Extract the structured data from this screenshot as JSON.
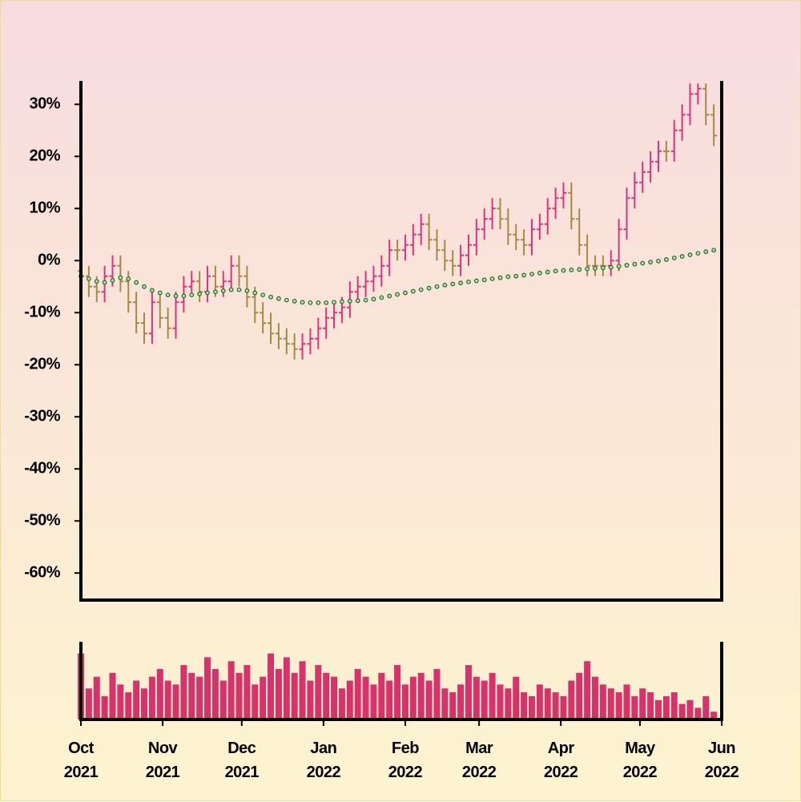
{
  "chart_data": {
    "type": "ohlc",
    "x": [
      0,
      3,
      6,
      9,
      12,
      15,
      18,
      21,
      24,
      27,
      30,
      33,
      36,
      39,
      42,
      45,
      48,
      51,
      54,
      57,
      60,
      63,
      66,
      69,
      72,
      75,
      78,
      81,
      84,
      87,
      90,
      93,
      96,
      99,
      102,
      105,
      108,
      111,
      114,
      117,
      120,
      123,
      126,
      129,
      132,
      135,
      138,
      141,
      144,
      147,
      150,
      153,
      156,
      159,
      162,
      165,
      168,
      171,
      174,
      177,
      180,
      183,
      186,
      189,
      192,
      195,
      198,
      201,
      204,
      207,
      210,
      213,
      216,
      219,
      222,
      225,
      228,
      231,
      234,
      237,
      240
    ],
    "xlim": [
      0,
      243
    ],
    "xticks": [
      {
        "value": 0,
        "label": "Oct 2021"
      },
      {
        "value": 31,
        "label": "Nov 2021"
      },
      {
        "value": 61,
        "label": "Dec 2021"
      },
      {
        "value": 92,
        "label": "Jan 2022"
      },
      {
        "value": 123,
        "label": "Feb 2022"
      },
      {
        "value": 151,
        "label": "Mar 2022"
      },
      {
        "value": 182,
        "label": "Apr 2022"
      },
      {
        "value": 212,
        "label": "May 2022"
      },
      {
        "value": 243,
        "label": "Jun 2022"
      }
    ],
    "ylim": [
      -65.2,
      34.5
    ],
    "yticks": [
      {
        "value": 30,
        "label": "30%"
      },
      {
        "value": 20,
        "label": "20%"
      },
      {
        "value": 10,
        "label": "10%"
      },
      {
        "value": 0,
        "label": "0%"
      },
      {
        "value": -10,
        "label": "-10%"
      },
      {
        "value": -20,
        "label": "-20%"
      },
      {
        "value": -30,
        "label": "-30%"
      },
      {
        "value": -40,
        "label": "-40%"
      },
      {
        "value": -50,
        "label": "-50%"
      },
      {
        "value": -60,
        "label": "-60%"
      }
    ],
    "open": [
      -2,
      -3,
      -5,
      -6,
      -3,
      -1,
      -4,
      -8,
      -12,
      -14,
      -8,
      -11,
      -13,
      -8,
      -5,
      -4,
      -6,
      -3,
      -5,
      -4,
      -1,
      -3,
      -7,
      -10,
      -12,
      -14,
      -15,
      -16,
      -17,
      -16,
      -15,
      -13,
      -11,
      -10,
      -9,
      -6,
      -5,
      -4,
      -3,
      -1,
      2,
      2,
      3,
      5,
      7,
      4,
      2,
      0,
      -1,
      1,
      3,
      6,
      8,
      10,
      8,
      5,
      4,
      3,
      6,
      7,
      10,
      12,
      13,
      8,
      3,
      -1,
      -1,
      -1,
      0,
      6,
      12,
      15,
      17,
      19,
      21,
      21,
      25,
      28,
      32,
      33,
      28
    ],
    "high": [
      0,
      -1,
      -3,
      -1,
      1,
      1,
      -2,
      -6,
      -10,
      -6,
      -6,
      -9,
      -6,
      -3,
      -2,
      -2,
      -1,
      -1,
      -2,
      1,
      1,
      -1,
      -5,
      -8,
      -10,
      -12,
      -13,
      -14,
      -14,
      -13,
      -11,
      -9,
      -8,
      -7,
      -4,
      -3,
      -2,
      -1,
      1,
      4,
      4,
      5,
      7,
      9,
      9,
      6,
      4,
      2,
      3,
      5,
      8,
      10,
      12,
      12,
      10,
      7,
      6,
      8,
      9,
      12,
      14,
      15,
      15,
      10,
      5,
      1,
      1,
      2,
      8,
      14,
      17,
      19,
      21,
      23,
      23,
      27,
      30,
      34,
      34,
      34,
      30
    ],
    "low": [
      -5,
      -7,
      -8,
      -8,
      -5,
      -6,
      -10,
      -14,
      -16,
      -16,
      -13,
      -15,
      -15,
      -10,
      -7,
      -8,
      -8,
      -7,
      -7,
      -6,
      -5,
      -9,
      -12,
      -14,
      -16,
      -17,
      -18,
      -19,
      -19,
      -18,
      -17,
      -15,
      -13,
      -12,
      -11,
      -8,
      -7,
      -6,
      -5,
      -3,
      0,
      0,
      1,
      3,
      2,
      0,
      -2,
      -3,
      -3,
      -1,
      1,
      4,
      6,
      6,
      3,
      2,
      1,
      1,
      4,
      5,
      8,
      10,
      6,
      1,
      -3,
      -3,
      -3,
      -3,
      -2,
      4,
      10,
      13,
      15,
      17,
      19,
      19,
      23,
      26,
      30,
      26,
      22
    ],
    "close": [
      -3,
      -5,
      -6,
      -3,
      -1,
      -4,
      -8,
      -12,
      -14,
      -8,
      -11,
      -13,
      -8,
      -5,
      -4,
      -6,
      -3,
      -5,
      -4,
      -1,
      -3,
      -7,
      -10,
      -12,
      -14,
      -15,
      -16,
      -17,
      -16,
      -15,
      -13,
      -11,
      -10,
      -9,
      -6,
      -5,
      -4,
      -3,
      -1,
      2,
      2,
      3,
      5,
      7,
      4,
      2,
      0,
      -1,
      1,
      3,
      6,
      8,
      10,
      8,
      5,
      4,
      3,
      6,
      7,
      10,
      12,
      13,
      8,
      3,
      -1,
      -1,
      -1,
      0,
      6,
      12,
      15,
      17,
      19,
      21,
      21,
      25,
      28,
      32,
      33,
      28,
      24
    ],
    "up_color": "#d8357c",
    "down_color": "#a58a45",
    "moving_average": {
      "color": "#1e6b2a",
      "values": [
        -3,
        -3.5,
        -4,
        -4.2,
        -3.8,
        -3.3,
        -3.5,
        -4.2,
        -5,
        -5.7,
        -6.2,
        -6.6,
        -6.8,
        -6.8,
        -6.6,
        -6.4,
        -6.2,
        -6,
        -5.8,
        -5.6,
        -5.6,
        -5.8,
        -6.2,
        -6.6,
        -7,
        -7.3,
        -7.6,
        -7.8,
        -8,
        -8.1,
        -8.1,
        -8.1,
        -8,
        -7.9,
        -7.8,
        -7.7,
        -7.6,
        -7.4,
        -7.1,
        -6.8,
        -6.5,
        -6.2,
        -5.9,
        -5.6,
        -5.3,
        -5,
        -4.7,
        -4.5,
        -4.3,
        -4.1,
        -3.9,
        -3.7,
        -3.5,
        -3.3,
        -3.1,
        -3,
        -2.8,
        -2.6,
        -2.4,
        -2.2,
        -2,
        -1.9,
        -1.8,
        -1.7,
        -1.6,
        -1.5,
        -1.4,
        -1.3,
        -1.1,
        -0.9,
        -0.7,
        -0.5,
        -0.3,
        -0.1,
        0.2,
        0.5,
        0.8,
        1.1,
        1.4,
        1.7,
        2
      ]
    },
    "volume": {
      "color": "#d6336c",
      "ylim": [
        0,
        100
      ],
      "values": [
        85,
        40,
        55,
        30,
        60,
        45,
        35,
        50,
        40,
        55,
        65,
        50,
        45,
        70,
        60,
        55,
        80,
        65,
        50,
        75,
        60,
        70,
        45,
        55,
        85,
        65,
        80,
        60,
        75,
        50,
        70,
        60,
        55,
        40,
        50,
        65,
        55,
        45,
        60,
        50,
        70,
        45,
        55,
        60,
        50,
        65,
        40,
        35,
        45,
        70,
        55,
        50,
        60,
        45,
        40,
        55,
        35,
        30,
        45,
        40,
        35,
        30,
        50,
        60,
        75,
        55,
        45,
        40,
        35,
        45,
        30,
        40,
        35,
        25,
        30,
        35,
        20,
        25,
        15,
        30,
        10
      ]
    }
  }
}
